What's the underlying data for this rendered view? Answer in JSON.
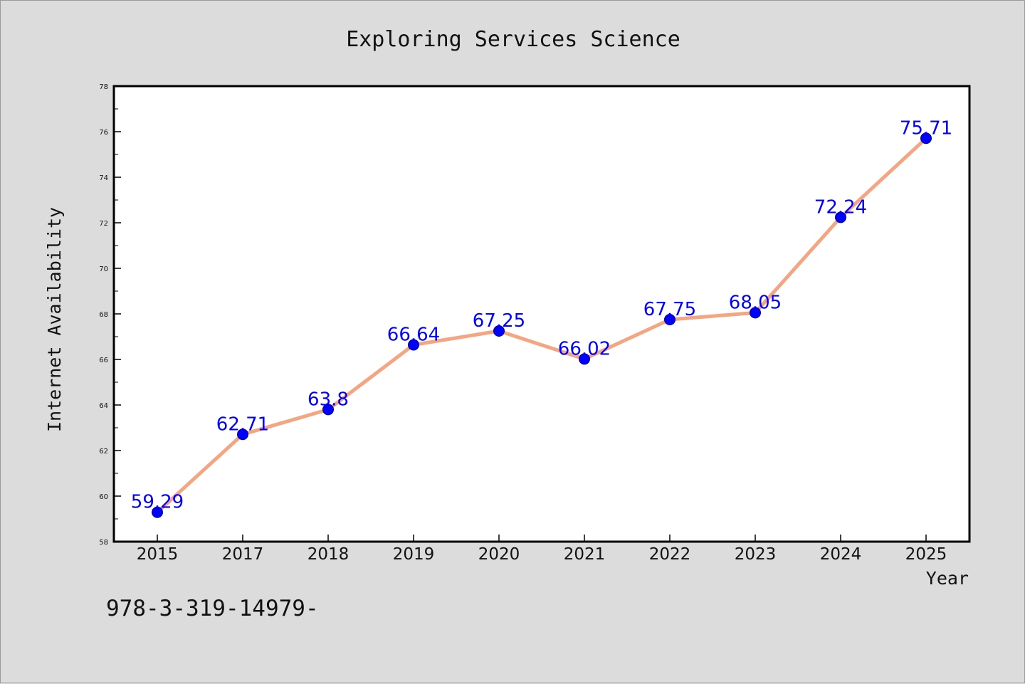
{
  "chart_data": {
    "type": "line",
    "title": "Exploring Services Science",
    "xlabel": "Year",
    "ylabel": "Internet Availability",
    "categories": [
      "2015",
      "2017",
      "2018",
      "2019",
      "2020",
      "2021",
      "2022",
      "2023",
      "2024",
      "2025"
    ],
    "values": [
      59.29,
      62.71,
      63.8,
      66.64,
      67.25,
      66.02,
      67.75,
      68.05,
      72.24,
      75.71
    ],
    "data_labels": [
      "59.29",
      "62.71",
      "63.8",
      "66.64",
      "67.25",
      "66.02",
      "67.75",
      "68.05",
      "72.24",
      "75.71"
    ],
    "ylim": [
      58,
      78
    ],
    "yticks": [
      58,
      60,
      62,
      64,
      66,
      68,
      70,
      72,
      74,
      76,
      78
    ],
    "grid": false,
    "legend": "none",
    "line_color": "#f4a582",
    "marker_color": "#0000ff",
    "label_color": "#0000ff",
    "plot_background": "#ffffff",
    "figure_background": "#dcdcdc"
  },
  "footer": {
    "text": "978-3-319-14979-"
  }
}
